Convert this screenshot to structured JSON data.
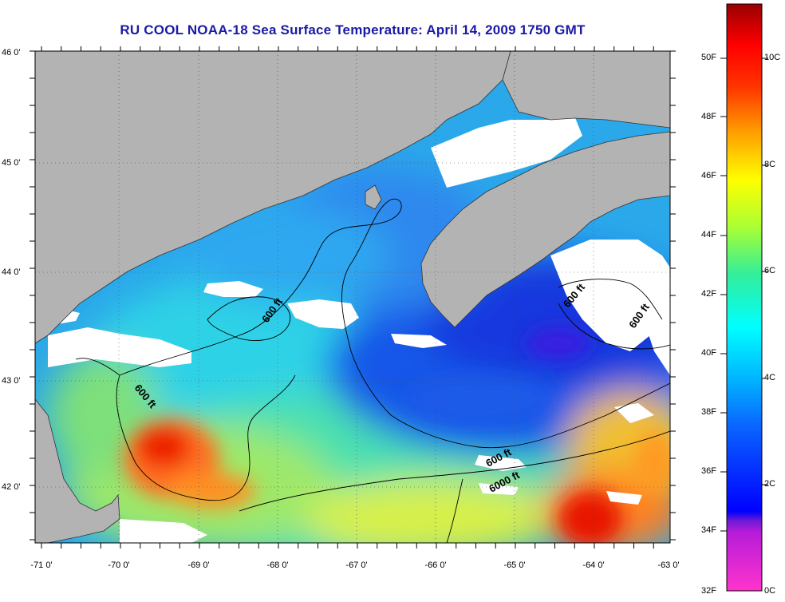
{
  "title": "RU COOL  NOAA-18  Sea Surface Temperature:  April 14, 2009 1750 GMT",
  "lat_labels": [
    "46 0'",
    "45 0'",
    "44 0'",
    "43 0'",
    "42 0'"
  ],
  "lon_labels": [
    "-71 0'",
    "-70 0'",
    "-69 0'",
    "-68 0'",
    "-67 0'",
    "-66 0'",
    "-65 0'",
    "-64 0'",
    "-63 0'"
  ],
  "contour_labels": [
    "600 ft",
    "600 ft",
    "600 ft",
    "600 ft",
    "600 ft",
    "6000 ft"
  ],
  "colorbar": {
    "fahrenheit_labels": [
      "50F",
      "48F",
      "46F",
      "44F",
      "42F",
      "40F",
      "38F",
      "36F",
      "34F",
      "32F"
    ],
    "celsius_labels": [
      "10C",
      "8C",
      "6C",
      "4C",
      "2C",
      "0C"
    ]
  },
  "colors": {
    "land": "#b3b3b3",
    "cloud": "#ffffff",
    "title": "#1a1aa6",
    "contour": "#000000"
  }
}
